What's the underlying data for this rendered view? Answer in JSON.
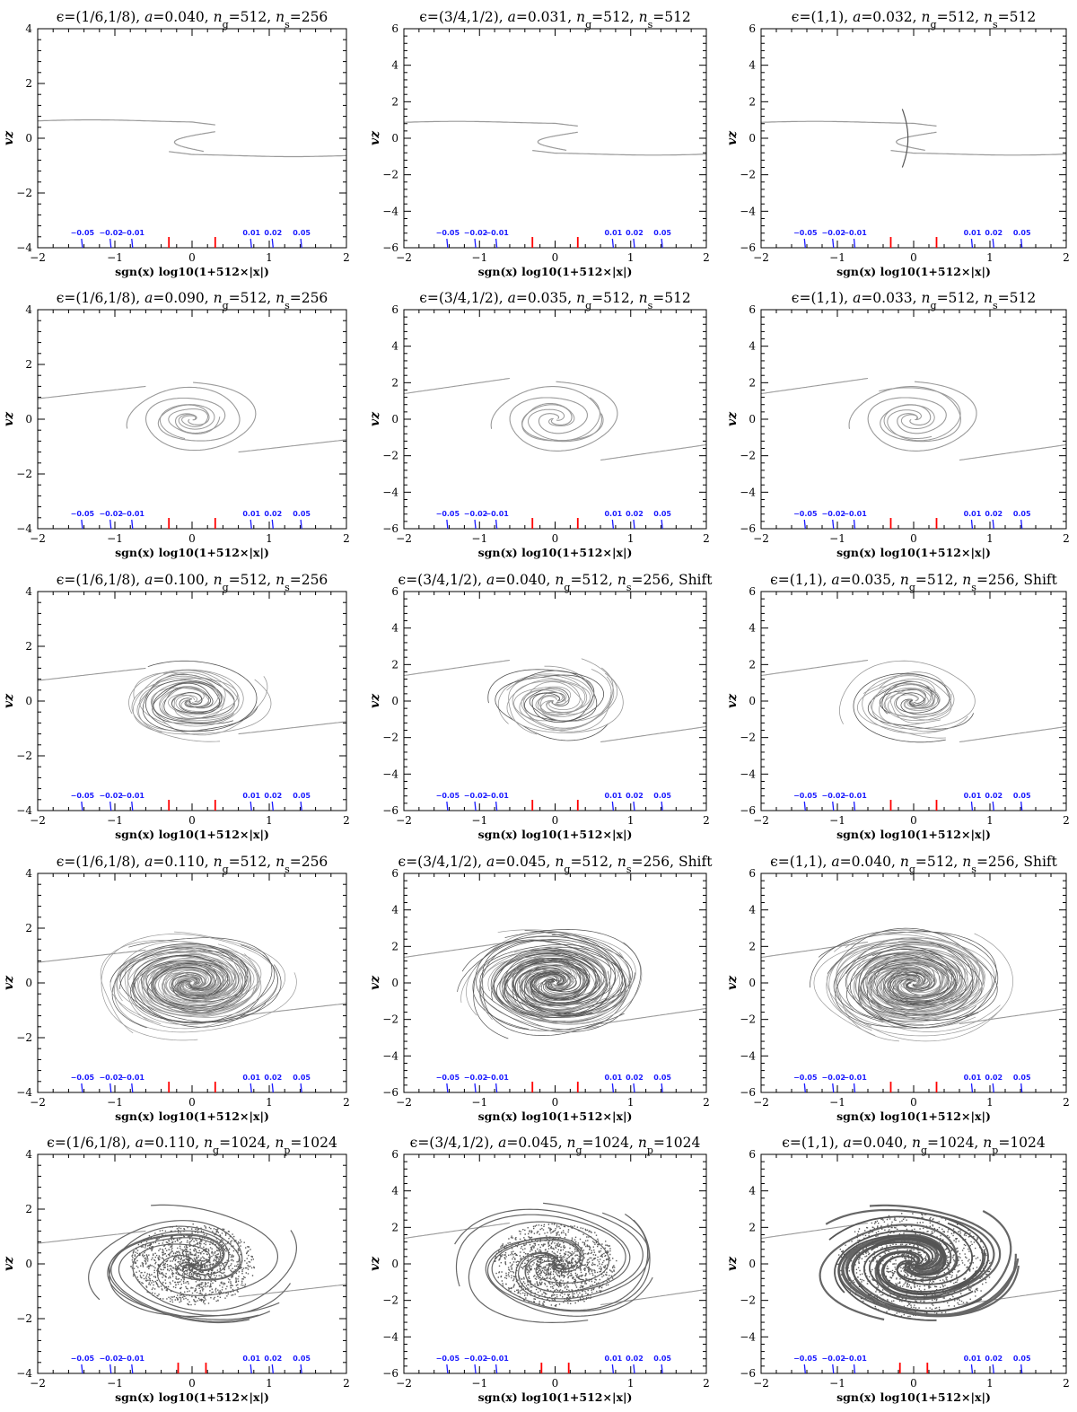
{
  "colors": {
    "axis": "#000000",
    "curve": "#9a9a9a",
    "curve_dark": "#555555",
    "marker_blue": "#1a1aff",
    "marker_red": "#ff0000",
    "text": "#000000"
  },
  "chart_data": [
    {
      "type": "scatter",
      "row": 0,
      "col": 0,
      "style": "s_curve",
      "title": "ϵ=(1/6,1/8), a=0.040, ng=512, ns=256",
      "title_parts": {
        "eps": "ϵ=(1/6,1/8), ",
        "a": "a",
        "a_val": "=0.040, ",
        "n": "n",
        "g": "g",
        "g_val": "=512, ",
        "s_key": "s",
        "s_val": "=256",
        "suffix": ""
      },
      "xlabel": "sgn(x) log10(1+512×|x|)",
      "ylabel": "vz",
      "xlim": [
        -2,
        2
      ],
      "ylim": [
        -4,
        4
      ],
      "xticks": [
        "−2",
        "−1",
        "0",
        "1",
        "2"
      ],
      "yticks": [
        "−4",
        "−2",
        "0",
        "2",
        "4"
      ],
      "blue_markers": [
        {
          "x": -1.42,
          "label": "−0.05"
        },
        {
          "x": -1.05,
          "label": "−0.02"
        },
        {
          "x": -0.77,
          "label": "−0.01"
        },
        {
          "x": 0.77,
          "label": "0.01"
        },
        {
          "x": 1.05,
          "label": "0.02"
        },
        {
          "x": 1.42,
          "label": "0.05"
        }
      ],
      "red_markers": [
        -0.3,
        0.3
      ]
    },
    {
      "type": "scatter",
      "row": 0,
      "col": 1,
      "style": "s_curve",
      "title": "ϵ=(3/4,1/2), a=0.031, ng=512, ns=512",
      "title_parts": {
        "eps": "ϵ=(3/4,1/2), ",
        "a": "a",
        "a_val": "=0.031, ",
        "n": "n",
        "g": "g",
        "g_val": "=512, ",
        "s_key": "s",
        "s_val": "=512",
        "suffix": ""
      },
      "xlabel": "sgn(x) log10(1+512×|x|)",
      "ylabel": "vz",
      "xlim": [
        -2,
        2
      ],
      "ylim": [
        -6,
        6
      ],
      "xticks": [
        "−2",
        "−1",
        "0",
        "1",
        "2"
      ],
      "yticks": [
        "−6",
        "−4",
        "−2",
        "0",
        "2",
        "4",
        "6"
      ],
      "blue_markers": [
        {
          "x": -1.42,
          "label": "−0.05"
        },
        {
          "x": -1.05,
          "label": "−0.02"
        },
        {
          "x": -0.77,
          "label": "−0.01"
        },
        {
          "x": 0.77,
          "label": "0.01"
        },
        {
          "x": 1.05,
          "label": "0.02"
        },
        {
          "x": 1.42,
          "label": "0.05"
        }
      ],
      "red_markers": [
        -0.3,
        0.3
      ]
    },
    {
      "type": "scatter",
      "row": 0,
      "col": 2,
      "style": "s_curve_sharp",
      "title": "ϵ=(1,1), a=0.032, ng=512, ns=512",
      "title_parts": {
        "eps": "ϵ=(1,1), ",
        "a": "a",
        "a_val": "=0.032, ",
        "n": "n",
        "g": "g",
        "g_val": "=512, ",
        "s_key": "s",
        "s_val": "=512",
        "suffix": ""
      },
      "xlabel": "sgn(x) log10(1+512×|x|)",
      "ylabel": "vz",
      "xlim": [
        -2,
        2
      ],
      "ylim": [
        -6,
        6
      ],
      "xticks": [
        "−2",
        "−1",
        "0",
        "1",
        "2"
      ],
      "yticks": [
        "−6",
        "−4",
        "−2",
        "0",
        "2",
        "4",
        "6"
      ],
      "blue_markers": [
        {
          "x": -1.42,
          "label": "−0.05"
        },
        {
          "x": -1.05,
          "label": "−0.02"
        },
        {
          "x": -0.77,
          "label": "−0.01"
        },
        {
          "x": 0.77,
          "label": "0.01"
        },
        {
          "x": 1.05,
          "label": "0.02"
        },
        {
          "x": 1.42,
          "label": "0.05"
        }
      ],
      "red_markers": [
        -0.3,
        0.3
      ]
    },
    {
      "type": "scatter",
      "row": 1,
      "col": 0,
      "style": "spiral",
      "title": "ϵ=(1/6,1/8), a=0.090, ng=512, ns=256",
      "title_parts": {
        "eps": "ϵ=(1/6,1/8), ",
        "a": "a",
        "a_val": "=0.090, ",
        "n": "n",
        "g": "g",
        "g_val": "=512, ",
        "s_key": "s",
        "s_val": "=256",
        "suffix": ""
      },
      "xlabel": "sgn(x) log10(1+512×|x|)",
      "ylabel": "vz",
      "xlim": [
        -2,
        2
      ],
      "ylim": [
        -4,
        4
      ],
      "xticks": [
        "−2",
        "−1",
        "0",
        "1",
        "2"
      ],
      "yticks": [
        "−4",
        "−2",
        "0",
        "2",
        "4"
      ],
      "blue_markers": [
        {
          "x": -1.42,
          "label": "−0.05"
        },
        {
          "x": -1.05,
          "label": "−0.02"
        },
        {
          "x": -0.77,
          "label": "−0.01"
        },
        {
          "x": 0.77,
          "label": "0.01"
        },
        {
          "x": 1.05,
          "label": "0.02"
        },
        {
          "x": 1.42,
          "label": "0.05"
        }
      ],
      "red_markers": [
        -0.3,
        0.3
      ]
    },
    {
      "type": "scatter",
      "row": 1,
      "col": 1,
      "style": "spiral",
      "title": "ϵ=(3/4,1/2), a=0.035, ng=512, ns=512",
      "title_parts": {
        "eps": "ϵ=(3/4,1/2), ",
        "a": "a",
        "a_val": "=0.035, ",
        "n": "n",
        "g": "g",
        "g_val": "=512, ",
        "s_key": "s",
        "s_val": "=512",
        "suffix": ""
      },
      "xlabel": "sgn(x) log10(1+512×|x|)",
      "ylabel": "vz",
      "xlim": [
        -2,
        2
      ],
      "ylim": [
        -6,
        6
      ],
      "xticks": [
        "−2",
        "−1",
        "0",
        "1",
        "2"
      ],
      "yticks": [
        "−6",
        "−4",
        "−2",
        "0",
        "2",
        "4",
        "6"
      ],
      "blue_markers": [
        {
          "x": -1.42,
          "label": "−0.05"
        },
        {
          "x": -1.05,
          "label": "−0.02"
        },
        {
          "x": -0.77,
          "label": "−0.01"
        },
        {
          "x": 0.77,
          "label": "0.01"
        },
        {
          "x": 1.05,
          "label": "0.02"
        },
        {
          "x": 1.42,
          "label": "0.05"
        }
      ],
      "red_markers": [
        -0.3,
        0.3
      ]
    },
    {
      "type": "scatter",
      "row": 1,
      "col": 2,
      "style": "spiral",
      "title": "ϵ=(1,1), a=0.033, ng=512, ns=512",
      "title_parts": {
        "eps": "ϵ=(1,1), ",
        "a": "a",
        "a_val": "=0.033, ",
        "n": "n",
        "g": "g",
        "g_val": "=512, ",
        "s_key": "s",
        "s_val": "=512",
        "suffix": ""
      },
      "xlabel": "sgn(x) log10(1+512×|x|)",
      "ylabel": "vz",
      "xlim": [
        -2,
        2
      ],
      "ylim": [
        -6,
        6
      ],
      "xticks": [
        "−2",
        "−1",
        "0",
        "1",
        "2"
      ],
      "yticks": [
        "−6",
        "−4",
        "−2",
        "0",
        "2",
        "4",
        "6"
      ],
      "blue_markers": [
        {
          "x": -1.42,
          "label": "−0.05"
        },
        {
          "x": -1.05,
          "label": "−0.02"
        },
        {
          "x": -0.77,
          "label": "−0.01"
        },
        {
          "x": 0.77,
          "label": "0.01"
        },
        {
          "x": 1.05,
          "label": "0.02"
        },
        {
          "x": 1.42,
          "label": "0.05"
        }
      ],
      "red_markers": [
        -0.3,
        0.3
      ]
    },
    {
      "type": "scatter",
      "row": 2,
      "col": 0,
      "style": "tangle",
      "title": "ϵ=(1/6,1/8), a=0.100, ng=512, ns=256",
      "title_parts": {
        "eps": "ϵ=(1/6,1/8), ",
        "a": "a",
        "a_val": "=0.100, ",
        "n": "n",
        "g": "g",
        "g_val": "=512, ",
        "s_key": "s",
        "s_val": "=256",
        "suffix": ""
      },
      "xlabel": "sgn(x) log10(1+512×|x|)",
      "ylabel": "vz",
      "xlim": [
        -2,
        2
      ],
      "ylim": [
        -4,
        4
      ],
      "xticks": [
        "−2",
        "−1",
        "0",
        "1",
        "2"
      ],
      "yticks": [
        "−4",
        "−2",
        "0",
        "2",
        "4"
      ],
      "blue_markers": [
        {
          "x": -1.42,
          "label": "−0.05"
        },
        {
          "x": -1.05,
          "label": "−0.02"
        },
        {
          "x": -0.77,
          "label": "−0.01"
        },
        {
          "x": 0.77,
          "label": "0.01"
        },
        {
          "x": 1.05,
          "label": "0.02"
        },
        {
          "x": 1.42,
          "label": "0.05"
        }
      ],
      "red_markers": [
        -0.3,
        0.3
      ]
    },
    {
      "type": "scatter",
      "row": 2,
      "col": 1,
      "style": "tangle",
      "title": "ϵ=(3/4,1/2), a=0.040, ng=512, ns=256, Shift",
      "title_parts": {
        "eps": "ϵ=(3/4,1/2), ",
        "a": "a",
        "a_val": "=0.040, ",
        "n": "n",
        "g": "g",
        "g_val": "=512, ",
        "s_key": "s",
        "s_val": "=256",
        "suffix": ", Shift"
      },
      "xlabel": "sgn(x) log10(1+512×|x|)",
      "ylabel": "vz",
      "xlim": [
        -2,
        2
      ],
      "ylim": [
        -6,
        6
      ],
      "xticks": [
        "−2",
        "−1",
        "0",
        "1",
        "2"
      ],
      "yticks": [
        "−6",
        "−4",
        "−2",
        "0",
        "2",
        "4",
        "6"
      ],
      "blue_markers": [
        {
          "x": -1.42,
          "label": "−0.05"
        },
        {
          "x": -1.05,
          "label": "−0.02"
        },
        {
          "x": -0.77,
          "label": "−0.01"
        },
        {
          "x": 0.77,
          "label": "0.01"
        },
        {
          "x": 1.05,
          "label": "0.02"
        },
        {
          "x": 1.42,
          "label": "0.05"
        }
      ],
      "red_markers": [
        -0.3,
        0.3
      ]
    },
    {
      "type": "scatter",
      "row": 2,
      "col": 2,
      "style": "tangle",
      "title": "ϵ=(1,1), a=0.035, ng=512, ns=256, Shift",
      "title_parts": {
        "eps": "ϵ=(1,1), ",
        "a": "a",
        "a_val": "=0.035, ",
        "n": "n",
        "g": "g",
        "g_val": "=512, ",
        "s_key": "s",
        "s_val": "=256",
        "suffix": ", Shift"
      },
      "xlabel": "sgn(x) log10(1+512×|x|)",
      "ylabel": "vz",
      "xlim": [
        -2,
        2
      ],
      "ylim": [
        -6,
        6
      ],
      "xticks": [
        "−2",
        "−1",
        "0",
        "1",
        "2"
      ],
      "yticks": [
        "−6",
        "−4",
        "−2",
        "0",
        "2",
        "4",
        "6"
      ],
      "blue_markers": [
        {
          "x": -1.42,
          "label": "−0.05"
        },
        {
          "x": -1.05,
          "label": "−0.02"
        },
        {
          "x": -0.77,
          "label": "−0.01"
        },
        {
          "x": 0.77,
          "label": "0.01"
        },
        {
          "x": 1.05,
          "label": "0.02"
        },
        {
          "x": 1.42,
          "label": "0.05"
        }
      ],
      "red_markers": [
        -0.3,
        0.3
      ]
    },
    {
      "type": "scatter",
      "row": 3,
      "col": 0,
      "style": "dense",
      "title": "ϵ=(1/6,1/8), a=0.110, ng=512, ns=256",
      "title_parts": {
        "eps": "ϵ=(1/6,1/8), ",
        "a": "a",
        "a_val": "=0.110, ",
        "n": "n",
        "g": "g",
        "g_val": "=512, ",
        "s_key": "s",
        "s_val": "=256",
        "suffix": ""
      },
      "xlabel": "sgn(x) log10(1+512×|x|)",
      "ylabel": "vz",
      "xlim": [
        -2,
        2
      ],
      "ylim": [
        -4,
        4
      ],
      "xticks": [
        "−2",
        "−1",
        "0",
        "1",
        "2"
      ],
      "yticks": [
        "−4",
        "−2",
        "0",
        "2",
        "4"
      ],
      "blue_markers": [
        {
          "x": -1.42,
          "label": "−0.05"
        },
        {
          "x": -1.05,
          "label": "−0.02"
        },
        {
          "x": -0.77,
          "label": "−0.01"
        },
        {
          "x": 0.77,
          "label": "0.01"
        },
        {
          "x": 1.05,
          "label": "0.02"
        },
        {
          "x": 1.42,
          "label": "0.05"
        }
      ],
      "red_markers": [
        -0.3,
        0.3
      ]
    },
    {
      "type": "scatter",
      "row": 3,
      "col": 1,
      "style": "dense",
      "title": "ϵ=(3/4,1/2), a=0.045, ng=512, ns=256, Shift",
      "title_parts": {
        "eps": "ϵ=(3/4,1/2), ",
        "a": "a",
        "a_val": "=0.045, ",
        "n": "n",
        "g": "g",
        "g_val": "=512, ",
        "s_key": "s",
        "s_val": "=256",
        "suffix": ", Shift"
      },
      "xlabel": "sgn(x) log10(1+512×|x|)",
      "ylabel": "vz",
      "xlim": [
        -2,
        2
      ],
      "ylim": [
        -6,
        6
      ],
      "xticks": [
        "−2",
        "−1",
        "0",
        "1",
        "2"
      ],
      "yticks": [
        "−6",
        "−4",
        "−2",
        "0",
        "2",
        "4",
        "6"
      ],
      "blue_markers": [
        {
          "x": -1.42,
          "label": "−0.05"
        },
        {
          "x": -1.05,
          "label": "−0.02"
        },
        {
          "x": -0.77,
          "label": "−0.01"
        },
        {
          "x": 0.77,
          "label": "0.01"
        },
        {
          "x": 1.05,
          "label": "0.02"
        },
        {
          "x": 1.42,
          "label": "0.05"
        }
      ],
      "red_markers": [
        -0.3,
        0.3
      ]
    },
    {
      "type": "scatter",
      "row": 3,
      "col": 2,
      "style": "dense",
      "title": "ϵ=(1,1), a=0.040, ng=512, ns=256, Shift",
      "title_parts": {
        "eps": "ϵ=(1,1), ",
        "a": "a",
        "a_val": "=0.040, ",
        "n": "n",
        "g": "g",
        "g_val": "=512, ",
        "s_key": "s",
        "s_val": "=256",
        "suffix": ", Shift"
      },
      "xlabel": "sgn(x) log10(1+512×|x|)",
      "ylabel": "vz",
      "xlim": [
        -2,
        2
      ],
      "ylim": [
        -6,
        6
      ],
      "xticks": [
        "−2",
        "−1",
        "0",
        "1",
        "2"
      ],
      "yticks": [
        "−6",
        "−4",
        "−2",
        "0",
        "2",
        "4",
        "6"
      ],
      "blue_markers": [
        {
          "x": -1.42,
          "label": "−0.05"
        },
        {
          "x": -1.05,
          "label": "−0.02"
        },
        {
          "x": -0.77,
          "label": "−0.01"
        },
        {
          "x": 0.77,
          "label": "0.01"
        },
        {
          "x": 1.05,
          "label": "0.02"
        },
        {
          "x": 1.42,
          "label": "0.05"
        }
      ],
      "red_markers": [
        -0.3,
        0.3
      ]
    },
    {
      "type": "scatter",
      "row": 4,
      "col": 0,
      "style": "particles",
      "title": "ϵ=(1/6,1/8), a=0.110, ng=1024, np=1024",
      "title_parts": {
        "eps": "ϵ=(1/6,1/8), ",
        "a": "a",
        "a_val": "=0.110, ",
        "n": "n",
        "g": "g",
        "g_val": "=1024, ",
        "s_key": "p",
        "s_val": "=1024",
        "suffix": ""
      },
      "xlabel": "sgn(x) log10(1+512×|x|)",
      "ylabel": "vz",
      "xlim": [
        -2,
        2
      ],
      "ylim": [
        -4,
        4
      ],
      "xticks": [
        "−2",
        "−1",
        "0",
        "1",
        "2"
      ],
      "yticks": [
        "−4",
        "−2",
        "0",
        "2",
        "4"
      ],
      "blue_markers": [
        {
          "x": -1.42,
          "label": "−0.05"
        },
        {
          "x": -1.05,
          "label": "−0.02"
        },
        {
          "x": -0.77,
          "label": "−0.01"
        },
        {
          "x": 0.77,
          "label": "0.01"
        },
        {
          "x": 1.05,
          "label": "0.02"
        },
        {
          "x": 1.42,
          "label": "0.05"
        }
      ],
      "red_markers": [
        -0.18,
        0.18
      ]
    },
    {
      "type": "scatter",
      "row": 4,
      "col": 1,
      "style": "particles",
      "title": "ϵ=(3/4,1/2), a=0.045, ng=1024, np=1024",
      "title_parts": {
        "eps": "ϵ=(3/4,1/2), ",
        "a": "a",
        "a_val": "=0.045, ",
        "n": "n",
        "g": "g",
        "g_val": "=1024, ",
        "s_key": "p",
        "s_val": "=1024",
        "suffix": ""
      },
      "xlabel": "sgn(x) log10(1+512×|x|)",
      "ylabel": "vz",
      "xlim": [
        -2,
        2
      ],
      "ylim": [
        -6,
        6
      ],
      "xticks": [
        "−2",
        "−1",
        "0",
        "1",
        "2"
      ],
      "yticks": [
        "−6",
        "−4",
        "−2",
        "0",
        "2",
        "4",
        "6"
      ],
      "blue_markers": [
        {
          "x": -1.42,
          "label": "−0.05"
        },
        {
          "x": -1.05,
          "label": "−0.02"
        },
        {
          "x": -0.77,
          "label": "−0.01"
        },
        {
          "x": 0.77,
          "label": "0.01"
        },
        {
          "x": 1.05,
          "label": "0.02"
        },
        {
          "x": 1.42,
          "label": "0.05"
        }
      ],
      "red_markers": [
        -0.18,
        0.18
      ]
    },
    {
      "type": "scatter",
      "row": 4,
      "col": 2,
      "style": "particles_ring",
      "title": "ϵ=(1,1), a=0.040, ng=1024, np=1024",
      "title_parts": {
        "eps": "ϵ=(1,1), ",
        "a": "a",
        "a_val": "=0.040, ",
        "n": "n",
        "g": "g",
        "g_val": "=1024, ",
        "s_key": "p",
        "s_val": "=1024",
        "suffix": ""
      },
      "xlabel": "sgn(x) log10(1+512×|x|)",
      "ylabel": "vz",
      "xlim": [
        -2,
        2
      ],
      "ylim": [
        -6,
        6
      ],
      "xticks": [
        "−2",
        "−1",
        "0",
        "1",
        "2"
      ],
      "yticks": [
        "−6",
        "−4",
        "−2",
        "0",
        "2",
        "4",
        "6"
      ],
      "blue_markers": [
        {
          "x": -1.42,
          "label": "−0.05"
        },
        {
          "x": -1.05,
          "label": "−0.02"
        },
        {
          "x": -0.77,
          "label": "−0.01"
        },
        {
          "x": 0.77,
          "label": "0.01"
        },
        {
          "x": 1.05,
          "label": "0.02"
        },
        {
          "x": 1.42,
          "label": "0.05"
        }
      ],
      "red_markers": [
        -0.18,
        0.18
      ]
    }
  ]
}
